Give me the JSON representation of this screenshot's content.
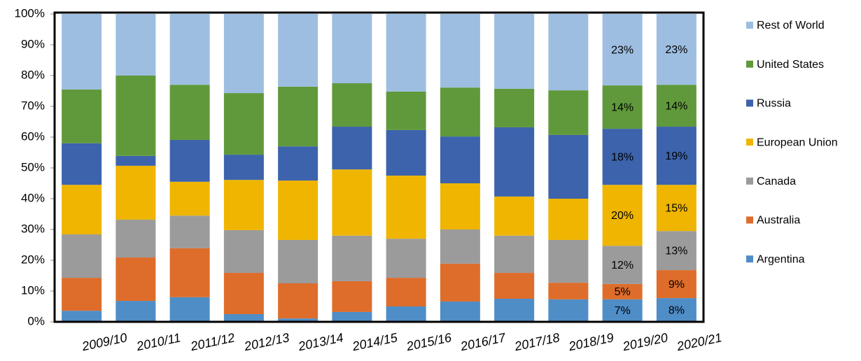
{
  "chart_data": {
    "type": "stacked_bar",
    "categories": [
      "2009/10",
      "2010/11",
      "2011/12",
      "2012/13",
      "2013/14",
      "2014/15",
      "2015/16",
      "2016/17",
      "2017/18",
      "2018/19",
      "2019/20",
      "2020/21"
    ],
    "series": [
      {
        "name": "Argentina",
        "color": "#4f8dc7",
        "values": [
          3.6,
          6.8,
          8.0,
          2.5,
          1.1,
          3.2,
          5.0,
          6.6,
          7.5,
          7.3,
          7.3,
          7.7
        ],
        "value_labels": [
          null,
          null,
          null,
          null,
          null,
          null,
          null,
          null,
          null,
          null,
          "7%",
          "8%"
        ]
      },
      {
        "name": "Australia",
        "color": "#de6d2b",
        "values": [
          10.7,
          14.1,
          15.9,
          13.4,
          11.4,
          10.0,
          9.3,
          12.3,
          8.4,
          5.4,
          5.0,
          9.1
        ],
        "value_labels": [
          null,
          null,
          null,
          null,
          null,
          null,
          null,
          null,
          null,
          null,
          "5%",
          "9%"
        ]
      },
      {
        "name": "Canada",
        "color": "#9b9b9b",
        "values": [
          14.1,
          12.3,
          10.6,
          13.9,
          14.1,
          14.8,
          12.7,
          11.1,
          12.1,
          13.9,
          12.4,
          12.7
        ],
        "value_labels": [
          null,
          null,
          null,
          null,
          null,
          null,
          null,
          null,
          null,
          null,
          "12%",
          "13%"
        ]
      },
      {
        "name": "European Union",
        "color": "#efb500",
        "values": [
          16.1,
          17.5,
          11.0,
          16.3,
          19.3,
          21.5,
          20.5,
          15.0,
          12.7,
          13.4,
          19.8,
          15.0
        ],
        "value_labels": [
          null,
          null,
          null,
          null,
          null,
          null,
          null,
          null,
          null,
          null,
          "20%",
          "15%"
        ]
      },
      {
        "name": "Russia",
        "color": "#3c63ac",
        "values": [
          13.5,
          3.2,
          13.6,
          8.2,
          11.1,
          13.9,
          14.8,
          15.2,
          22.5,
          20.7,
          18.2,
          18.9
        ],
        "value_labels": [
          null,
          null,
          null,
          null,
          null,
          null,
          null,
          null,
          null,
          null,
          "18%",
          "19%"
        ]
      },
      {
        "name": "United States",
        "color": "#60993b",
        "values": [
          17.5,
          26.1,
          17.9,
          20.0,
          19.4,
          14.1,
          12.5,
          15.9,
          12.5,
          14.5,
          14.1,
          13.6
        ],
        "value_labels": [
          null,
          null,
          null,
          null,
          null,
          null,
          null,
          null,
          null,
          null,
          "14%",
          "14%"
        ]
      },
      {
        "name": "Rest of World",
        "color": "#9dbee1",
        "values": [
          24.5,
          20.0,
          23.0,
          25.7,
          23.6,
          22.5,
          25.2,
          23.9,
          24.3,
          24.8,
          23.2,
          23.0
        ],
        "value_labels": [
          null,
          null,
          null,
          null,
          null,
          null,
          null,
          null,
          null,
          null,
          "23%",
          "23%"
        ]
      }
    ],
    "ylim": [
      0,
      100
    ],
    "yticks": [
      {
        "value": 0,
        "label": "0%"
      },
      {
        "value": 10,
        "label": "10%"
      },
      {
        "value": 20,
        "label": "20%"
      },
      {
        "value": 30,
        "label": "30%"
      },
      {
        "value": 40,
        "label": "40%"
      },
      {
        "value": 50,
        "label": "50%"
      },
      {
        "value": 60,
        "label": "60%"
      },
      {
        "value": 70,
        "label": "70%"
      },
      {
        "value": 80,
        "label": "80%"
      },
      {
        "value": 90,
        "label": "90%"
      },
      {
        "value": 100,
        "label": "100%"
      }
    ],
    "legend": "right"
  }
}
